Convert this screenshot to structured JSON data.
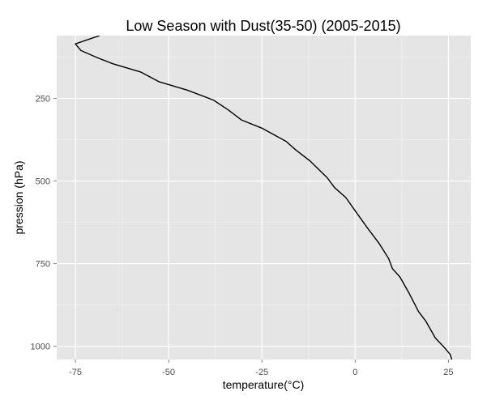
{
  "chart_data": {
    "type": "line",
    "title": "Low Season with Dust(35-50) (2005-2015)",
    "xlabel": "temperature(°C)",
    "ylabel": "pression (hPa)",
    "xlim": [
      -80,
      31
    ],
    "ylim": [
      1040,
      60
    ],
    "y_reversed": true,
    "grid": true,
    "legend": "none",
    "x_ticks": [
      -75,
      -50,
      -25,
      0,
      25
    ],
    "y_ticks": [
      250,
      500,
      750,
      1000
    ],
    "x_tick_labels": [
      "-75",
      "-50",
      "-25",
      "0",
      "25"
    ],
    "y_tick_labels": [
      "250",
      "500",
      "750",
      "1000"
    ],
    "series": [
      {
        "color": "#000000",
        "points": [
          {
            "x": -68.5,
            "y": 60
          },
          {
            "x": -75,
            "y": 85
          },
          {
            "x": -73.5,
            "y": 105
          },
          {
            "x": -69.5,
            "y": 125
          },
          {
            "x": -65,
            "y": 145
          },
          {
            "x": -57.5,
            "y": 170
          },
          {
            "x": -52.5,
            "y": 200
          },
          {
            "x": -45,
            "y": 225
          },
          {
            "x": -38,
            "y": 255
          },
          {
            "x": -34,
            "y": 285
          },
          {
            "x": -30.5,
            "y": 315
          },
          {
            "x": -25,
            "y": 340
          },
          {
            "x": -18.5,
            "y": 380
          },
          {
            "x": -16,
            "y": 405
          },
          {
            "x": -12,
            "y": 440
          },
          {
            "x": -7.5,
            "y": 490
          },
          {
            "x": -5.5,
            "y": 520
          },
          {
            "x": -2.5,
            "y": 550
          },
          {
            "x": 0,
            "y": 590
          },
          {
            "x": 3.5,
            "y": 645
          },
          {
            "x": 6.5,
            "y": 690
          },
          {
            "x": 9,
            "y": 735
          },
          {
            "x": 10,
            "y": 765
          },
          {
            "x": 12,
            "y": 790
          },
          {
            "x": 14.5,
            "y": 840
          },
          {
            "x": 17,
            "y": 895
          },
          {
            "x": 19,
            "y": 925
          },
          {
            "x": 21.5,
            "y": 975
          },
          {
            "x": 24,
            "y": 1005
          },
          {
            "x": 25.5,
            "y": 1025
          },
          {
            "x": 26,
            "y": 1045
          }
        ]
      }
    ]
  }
}
